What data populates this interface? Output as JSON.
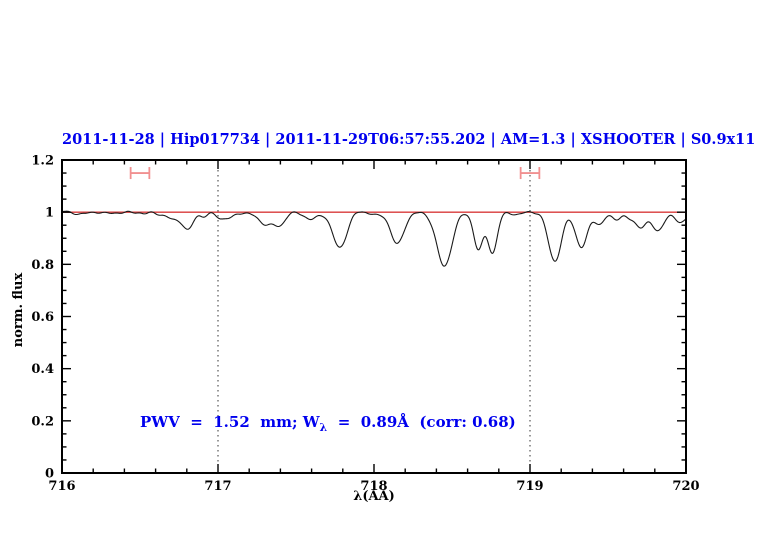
{
  "title": {
    "text": "2011-11-28 | Hip017734 | 2011-11-29T06:57:55.202 | AM=1.3 | XSHOOTER | S0.9x11"
  },
  "annotation": {
    "part1": "PWV  =  1.52  mm; W",
    "sub": "λ",
    "part2": "  =  0.89Å  (corr: 0.68)"
  },
  "colors": {
    "accent_blue": "#0000ee",
    "continuum_red": "#d83a3a",
    "marker_red": "#f19090",
    "spectrum": "#1a1a1a",
    "dotted_guide": "#333333",
    "axis": "#000000"
  },
  "chart_data": {
    "type": "line",
    "title": "2011-11-28 | Hip017734 | 2011-11-29T06:57:55.202 | AM=1.3 | XSHOOTER | S0.9x11",
    "xlabel": "λ(AA)",
    "ylabel": "norm. flux",
    "xlim": [
      716,
      720
    ],
    "ylim": [
      0,
      1.2
    ],
    "x_major_ticks": [
      716,
      717,
      718,
      719,
      720
    ],
    "x_tick_labels": [
      "716",
      "717",
      "718",
      "719",
      "720"
    ],
    "x_minor_tick_step": 0.2,
    "y_major_ticks": [
      0,
      0.2,
      0.4,
      0.6,
      0.8,
      1,
      1.2
    ],
    "y_tick_labels": [
      "0",
      "0.2",
      "0.4",
      "0.6",
      "0.8",
      "1",
      "1.2"
    ],
    "y_minor_tick_step": 0.05,
    "grid": false,
    "legend": false,
    "series_description": "normalized stellar spectrum with telluric water-vapour absorption lines; red continuum at flux = 1",
    "continuum_level": 1.0,
    "dotted_guide_lines_x": [
      717,
      719
    ],
    "range_markers": [
      {
        "x1": 716.44,
        "x2": 716.56,
        "y": 1.15
      },
      {
        "x1": 718.94,
        "x2": 719.06,
        "y": 1.15
      }
    ],
    "annotation": {
      "text": "PWV = 1.52 mm; W_λ = 0.89Å (corr: 0.68)",
      "x": 716.5,
      "y": 0.21
    },
    "absorption_lines_center_depth_sigma": [
      [
        716.13,
        0.006,
        0.03
      ],
      [
        716.28,
        0.007,
        0.03
      ],
      [
        716.53,
        0.009,
        0.025
      ],
      [
        716.73,
        0.028,
        0.06
      ],
      [
        716.81,
        0.06,
        0.03
      ],
      [
        716.91,
        0.014,
        0.025
      ],
      [
        717.02,
        0.022,
        0.03
      ],
      [
        717.08,
        0.022,
        0.03
      ],
      [
        717.32,
        0.05,
        0.055
      ],
      [
        717.4,
        0.035,
        0.03
      ],
      [
        717.6,
        0.03,
        0.04
      ],
      [
        717.78,
        0.135,
        0.045
      ],
      [
        718.02,
        0.01,
        0.03
      ],
      [
        718.15,
        0.125,
        0.042
      ],
      [
        718.45,
        0.21,
        0.048
      ],
      [
        718.67,
        0.145,
        0.03
      ],
      [
        718.76,
        0.155,
        0.03
      ],
      [
        718.93,
        0.01,
        0.03
      ],
      [
        719.16,
        0.185,
        0.042
      ],
      [
        719.33,
        0.135,
        0.038
      ],
      [
        719.45,
        0.045,
        0.03
      ],
      [
        719.55,
        0.028,
        0.03
      ],
      [
        719.63,
        0.018,
        0.025
      ],
      [
        719.71,
        0.055,
        0.038
      ],
      [
        719.82,
        0.07,
        0.038
      ],
      [
        719.97,
        0.035,
        0.04
      ]
    ],
    "noise_sine_components_amp_freq_phase": [
      [
        0.0032,
        47.0,
        0.8
      ],
      [
        0.0022,
        23.0,
        2.1
      ],
      [
        0.0018,
        83.0,
        4.0
      ]
    ]
  }
}
